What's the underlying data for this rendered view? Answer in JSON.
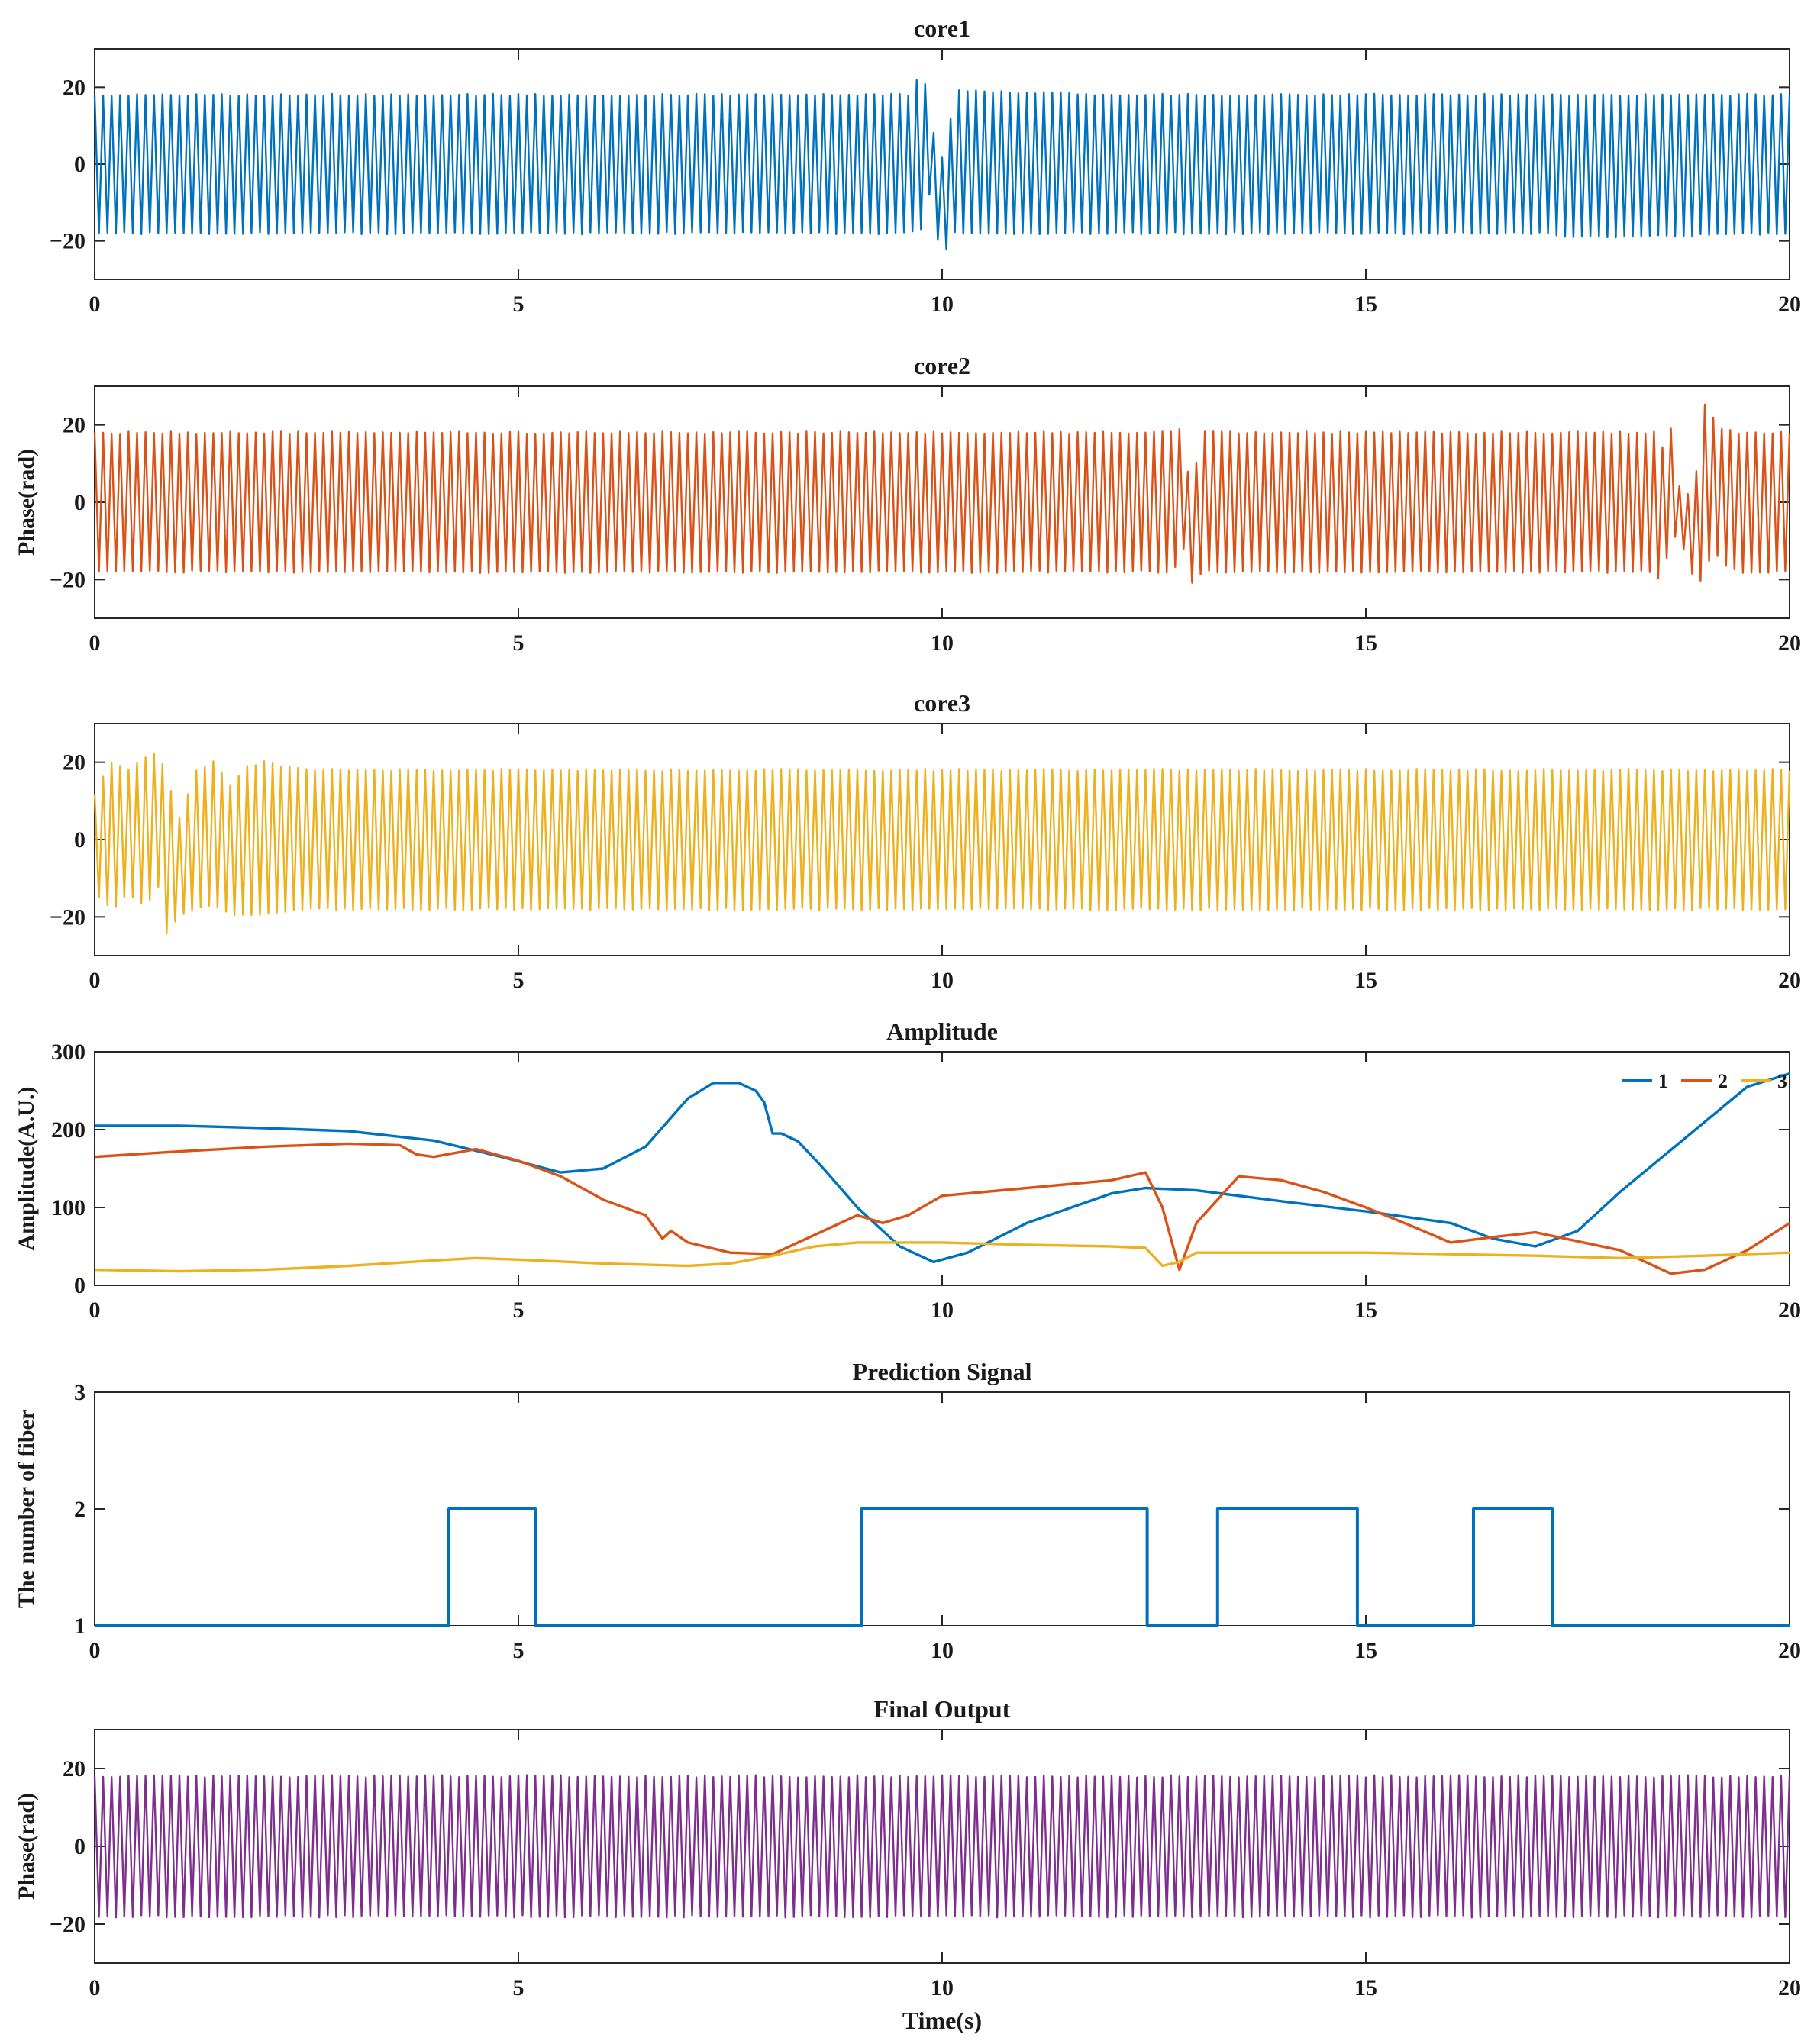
{
  "chart_data": [
    {
      "type": "line",
      "title": "core1",
      "ylabel": "",
      "xlabel": "",
      "xlim": [
        0,
        20
      ],
      "ylim": [
        -30,
        30
      ],
      "xticks": [
        0,
        5,
        10,
        15,
        20
      ],
      "yticks": [
        -20,
        0,
        20
      ],
      "ytick_labels": [
        "−20",
        "0",
        "20"
      ],
      "grid": false,
      "series": [
        {
          "color": "#0072BD",
          "oscillation_cycles": 200,
          "envelope_t": [
            0,
            9.6,
            9.75,
            9.8,
            9.85,
            9.9,
            9.95,
            10.0,
            10.05,
            10.1,
            10.2,
            10.3,
            12,
            17.0,
            17.5,
            20
          ],
          "envelope_upper": [
            18,
            18,
            24,
            21,
            14,
            8,
            4,
            2,
            6,
            12,
            19,
            19,
            18,
            18,
            18,
            18
          ],
          "envelope_lower": [
            -18,
            -18,
            -17,
            -12,
            -8,
            -12,
            -20,
            -26,
            -22,
            -17,
            -18,
            -18,
            -18,
            -18,
            -19,
            -18
          ]
        }
      ]
    },
    {
      "type": "line",
      "title": "core2",
      "ylabel": "Phase(rad)",
      "xlabel": "",
      "xlim": [
        0,
        20
      ],
      "ylim": [
        -30,
        30
      ],
      "xticks": [
        0,
        5,
        10,
        15,
        20
      ],
      "yticks": [
        -20,
        0,
        20
      ],
      "ytick_labels": [
        "−20",
        "0",
        "20"
      ],
      "grid": false,
      "series": [
        {
          "color": "#D95319",
          "oscillation_cycles": 200,
          "envelope_t": [
            0,
            12.7,
            12.8,
            12.85,
            12.9,
            12.95,
            13.0,
            13.1,
            18.4,
            18.5,
            18.6,
            18.7,
            18.8,
            18.9,
            19.0,
            19.1,
            19.2,
            19.4,
            20
          ],
          "envelope_upper": [
            18,
            18,
            19,
            14,
            8,
            6,
            10,
            18,
            18,
            14,
            19,
            4,
            2,
            8,
            25,
            22,
            19,
            18,
            18
          ],
          "envelope_lower": [
            -18,
            -18,
            -15,
            -12,
            -18,
            -21,
            -19,
            -18,
            -18,
            -21,
            -8,
            -10,
            -14,
            -23,
            -18,
            -12,
            -16,
            -18,
            -18
          ]
        }
      ]
    },
    {
      "type": "line",
      "title": "core3",
      "ylabel": "",
      "xlabel": "",
      "xlim": [
        0,
        20
      ],
      "ylim": [
        -30,
        30
      ],
      "xticks": [
        0,
        5,
        10,
        15,
        20
      ],
      "yticks": [
        -20,
        0,
        20
      ],
      "ytick_labels": [
        "−20",
        "0",
        "20"
      ],
      "grid": false,
      "series": [
        {
          "color": "#EDB120",
          "oscillation_cycles": 200,
          "envelope_t": [
            0,
            0.2,
            0.4,
            0.6,
            0.75,
            0.85,
            1.0,
            1.2,
            1.4,
            1.6,
            1.8,
            2.0,
            2.5,
            3.0,
            20
          ],
          "envelope_upper": [
            12,
            20,
            18,
            21,
            23,
            16,
            6,
            18,
            20,
            14,
            19,
            20,
            18,
            18,
            18
          ],
          "envelope_lower": [
            -14,
            -18,
            -14,
            -17,
            -12,
            -24,
            -20,
            -18,
            -17,
            -19,
            -20,
            -19,
            -18,
            -18,
            -18
          ]
        }
      ]
    },
    {
      "type": "line",
      "title": "Amplitude",
      "ylabel": "Amplitude(A.U.)",
      "xlabel": "",
      "xlim": [
        0,
        20
      ],
      "ylim": [
        0,
        300
      ],
      "xticks": [
        0,
        5,
        10,
        15,
        20
      ],
      "yticks": [
        0,
        100,
        200,
        300
      ],
      "ytick_labels": [
        "0",
        "100",
        "200",
        "300"
      ],
      "grid": false,
      "legend": "top-right",
      "series": [
        {
          "name": "1",
          "color": "#0072BD",
          "x": [
            0,
            1,
            2,
            3,
            4,
            4.8,
            5.5,
            6,
            6.5,
            7,
            7.3,
            7.6,
            7.8,
            7.9,
            8.0,
            8.1,
            8.3,
            8.6,
            9,
            9.5,
            9.9,
            10.3,
            11,
            12,
            12.4,
            13,
            14,
            15,
            16,
            16.5,
            17,
            17.5,
            18,
            19,
            19.5,
            20
          ],
          "y": [
            205,
            205,
            202,
            198,
            186,
            165,
            145,
            150,
            178,
            240,
            260,
            260,
            250,
            235,
            195,
            195,
            185,
            150,
            100,
            50,
            30,
            42,
            80,
            118,
            125,
            122,
            108,
            95,
            80,
            60,
            50,
            70,
            120,
            210,
            255,
            272
          ]
        },
        {
          "name": "2",
          "color": "#D95319",
          "x": [
            0,
            1,
            2,
            3,
            3.6,
            3.8,
            4,
            4.5,
            5,
            5.5,
            6,
            6.5,
            6.7,
            6.8,
            7,
            7.5,
            8,
            8.5,
            9,
            9.3,
            9.6,
            10,
            11,
            12,
            12.4,
            12.6,
            12.8,
            13,
            13.5,
            14,
            14.5,
            15,
            15.5,
            16,
            16.5,
            17,
            18,
            18.6,
            19,
            19.5,
            20
          ],
          "y": [
            165,
            172,
            178,
            182,
            180,
            168,
            165,
            175,
            160,
            140,
            110,
            90,
            60,
            70,
            55,
            42,
            40,
            65,
            90,
            80,
            90,
            115,
            125,
            135,
            145,
            100,
            20,
            80,
            140,
            135,
            120,
            100,
            78,
            55,
            62,
            68,
            45,
            15,
            20,
            45,
            80
          ]
        },
        {
          "name": "3",
          "color": "#EDB120",
          "x": [
            0,
            1,
            2,
            3,
            4,
            4.5,
            5,
            6,
            7,
            7.5,
            8,
            8.5,
            9,
            10,
            11,
            12,
            12.4,
            12.6,
            12.8,
            13,
            14,
            15,
            16,
            17,
            18,
            19,
            20
          ],
          "y": [
            20,
            18,
            20,
            25,
            32,
            35,
            33,
            28,
            25,
            28,
            38,
            50,
            55,
            55,
            52,
            50,
            48,
            25,
            30,
            42,
            42,
            42,
            40,
            38,
            35,
            38,
            42
          ]
        }
      ]
    },
    {
      "type": "line",
      "title": "Prediction Signal",
      "ylabel": "The number of fiber",
      "xlabel": "",
      "xlim": [
        0,
        20
      ],
      "ylim": [
        1,
        3
      ],
      "xticks": [
        0,
        5,
        10,
        15,
        20
      ],
      "yticks": [
        1,
        2,
        3
      ],
      "ytick_labels": [
        "1",
        "2",
        "3"
      ],
      "grid": false,
      "series": [
        {
          "color": "#0072BD",
          "step": true,
          "x": [
            0,
            4.18,
            4.18,
            5.2,
            5.2,
            9.05,
            9.05,
            12.42,
            12.42,
            13.25,
            13.25,
            14.9,
            14.9,
            16.27,
            16.27,
            17.2,
            17.2,
            20
          ],
          "y": [
            1,
            1,
            2,
            2,
            1,
            1,
            2,
            2,
            1,
            1,
            2,
            2,
            1,
            1,
            2,
            2,
            1,
            1
          ]
        }
      ]
    },
    {
      "type": "line",
      "title": "Final Output",
      "ylabel": "Phase(rad)",
      "xlabel": "Time(s)",
      "xlim": [
        0,
        20
      ],
      "ylim": [
        -30,
        30
      ],
      "xticks": [
        0,
        5,
        10,
        15,
        20
      ],
      "yticks": [
        -20,
        0,
        20
      ],
      "ytick_labels": [
        "−20",
        "0",
        "20"
      ],
      "grid": false,
      "series": [
        {
          "color": "#7E2F8E",
          "oscillation_cycles": 200,
          "envelope_t": [
            0,
            20
          ],
          "envelope_upper": [
            18,
            18
          ],
          "envelope_lower": [
            -18,
            -18
          ]
        }
      ]
    }
  ]
}
